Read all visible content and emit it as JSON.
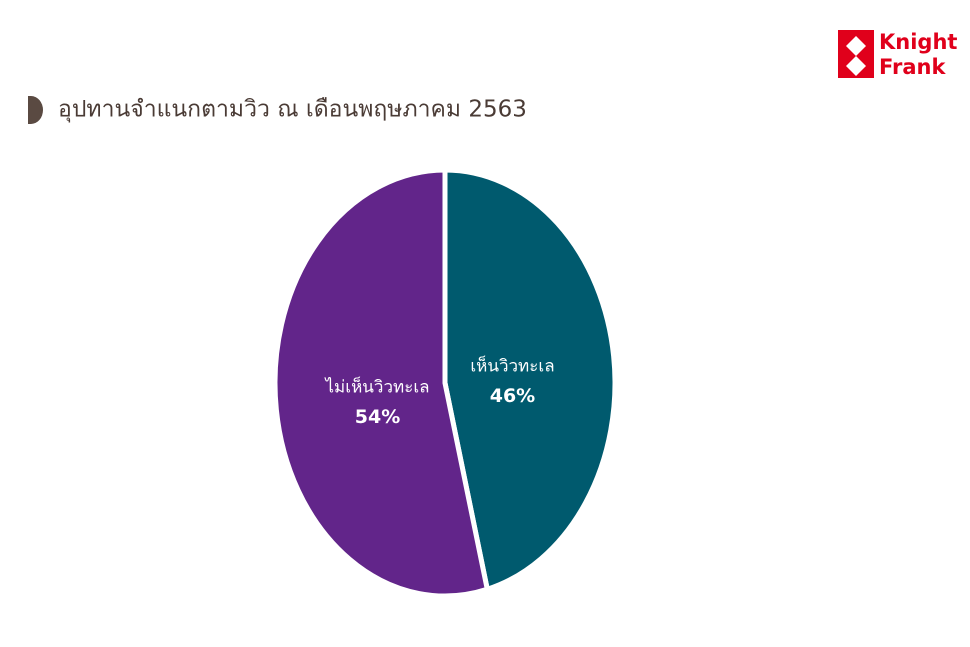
{
  "logo": {
    "lines": [
      "Knight",
      "Frank"
    ]
  },
  "chart_data": {
    "type": "pie",
    "title": "อุปทานจำแนกตามวิว ณ เดือนพฤษภาคม 2563",
    "categories": [
      "เห็นวิวทะเล",
      "ไม่เห็นวิวทะเล"
    ],
    "values": [
      46,
      54
    ],
    "value_labels": [
      "46%",
      "54%"
    ],
    "colors": [
      "#005a6e",
      "#62258a"
    ]
  }
}
